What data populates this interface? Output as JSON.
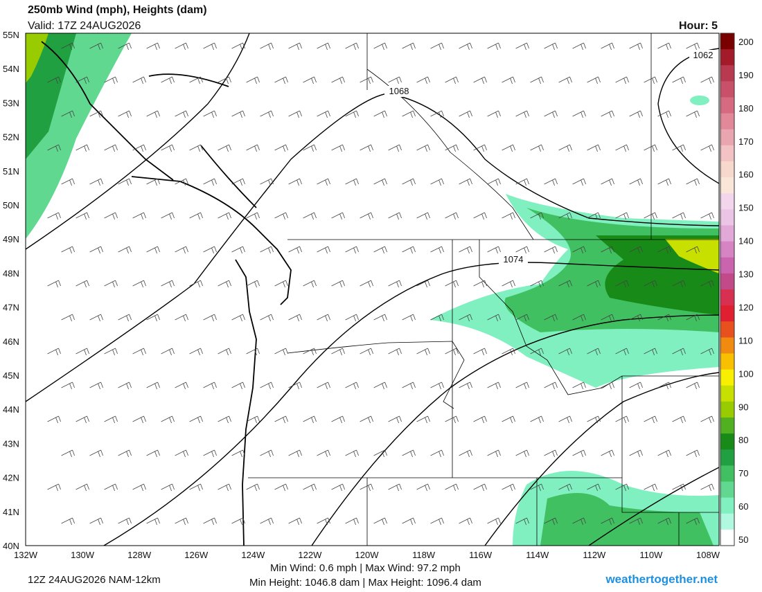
{
  "header": {
    "title": "250mb Wind (mph), Heights (dam)",
    "valid": "Valid: 17Z 24AUG2026",
    "hour": "Hour: 5"
  },
  "map": {
    "lat_labels": [
      "55N",
      "54N",
      "53N",
      "52N",
      "51N",
      "50N",
      "49N",
      "48N",
      "47N",
      "46N",
      "45N",
      "44N",
      "43N",
      "42N",
      "41N",
      "40N"
    ],
    "lon_labels": [
      "132W",
      "130W",
      "128W",
      "126W",
      "124W",
      "122W",
      "120W",
      "118W",
      "116W",
      "114W",
      "112W",
      "110W",
      "108W"
    ],
    "contour_labels": [
      "1068",
      "1074",
      "1062"
    ]
  },
  "colorbar": {
    "labels": [
      200,
      190,
      180,
      170,
      160,
      150,
      140,
      130,
      120,
      110,
      100,
      90,
      80,
      70,
      60,
      50
    ],
    "colors": [
      "#7a0000",
      "#a31a2a",
      "#b83a50",
      "#c85068",
      "#d66a80",
      "#e28898",
      "#eaa6b0",
      "#f2c2c4",
      "#f7d8cc",
      "#fae6d8",
      "#f4d6ec",
      "#ecc4e6",
      "#e2a8d8",
      "#d684c4",
      "#ca64ae",
      "#c24a88",
      "#d83050",
      "#e02030",
      "#e8501e",
      "#f08a10",
      "#f8c000",
      "#f8f000",
      "#c8e000",
      "#98cc00",
      "#50b020",
      "#188a18",
      "#20a040",
      "#40c060",
      "#60d890",
      "#80f0c0",
      "#b0f8e0",
      "#ffffff"
    ]
  },
  "footer": {
    "run": "12Z 24AUG2026 NAM-12km",
    "wind": "Min Wind:  0.6 mph | Max Wind:  97.2 mph",
    "height": "Min Height: 1046.8 dam | Max Height: 1096.4 dam",
    "site": "weathertogether.net"
  }
}
